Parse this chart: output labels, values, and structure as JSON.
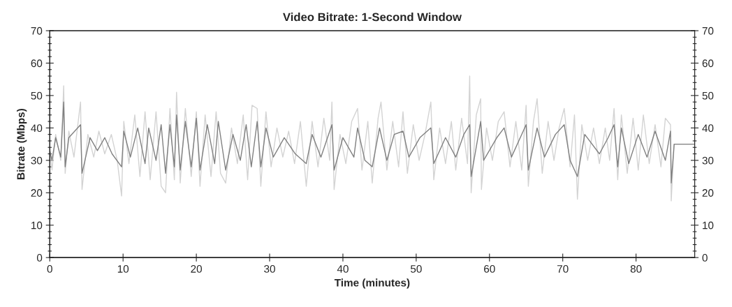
{
  "chart_data": {
    "type": "line",
    "title": "Video Bitrate: 1-Second Window",
    "xlabel": "Time (minutes)",
    "ylabel": "Bitrate (Mbps)",
    "xlim": [
      0,
      88
    ],
    "xticks": [
      0,
      10,
      20,
      30,
      40,
      50,
      60,
      70,
      80
    ],
    "ylim": [
      0,
      70
    ],
    "yticks": [
      0,
      {
        "value": 2,
        "label": null
      },
      {
        "value": 4,
        "label": null
      },
      {
        "value": 6,
        "label": null
      },
      {
        "value": 8,
        "label": null
      },
      10,
      {
        "value": 12,
        "label": null
      },
      {
        "value": 14,
        "label": null
      },
      {
        "value": 16,
        "label": null
      },
      {
        "value": 18,
        "label": null
      },
      20,
      {
        "value": 22,
        "label": null
      },
      {
        "value": 24,
        "label": null
      },
      {
        "value": 26,
        "label": null
      },
      {
        "value": 28,
        "label": null
      },
      30,
      {
        "value": 32,
        "label": null
      },
      {
        "value": 34,
        "label": null
      },
      {
        "value": 36,
        "label": null
      },
      {
        "value": 38,
        "label": null
      },
      40,
      {
        "value": 42,
        "label": null
      },
      {
        "value": 44,
        "label": null
      },
      {
        "value": 46,
        "label": null
      },
      {
        "value": 48,
        "label": null
      },
      50,
      {
        "value": 52,
        "label": null
      },
      {
        "value": 54,
        "label": null
      },
      {
        "value": 56,
        "label": null
      },
      {
        "value": 58,
        "label": null
      },
      60,
      {
        "value": 62,
        "label": null
      },
      {
        "value": 64,
        "label": null
      },
      {
        "value": 66,
        "label": null
      },
      {
        "value": 68,
        "label": null
      },
      70
    ],
    "y2lim": [
      0,
      70
    ],
    "y2ticks": [
      0,
      {
        "value": 2,
        "label": null
      },
      {
        "value": 4,
        "label": null
      },
      {
        "value": 6,
        "label": null
      },
      {
        "value": 8,
        "label": null
      },
      10,
      {
        "value": 12,
        "label": null
      },
      {
        "value": 14,
        "label": null
      },
      {
        "value": 16,
        "label": null
      },
      {
        "value": 18,
        "label": null
      },
      20,
      {
        "value": 22,
        "label": null
      },
      {
        "value": 24,
        "label": null
      },
      {
        "value": 26,
        "label": null
      },
      {
        "value": 28,
        "label": null
      },
      30,
      {
        "value": 32,
        "label": null
      },
      {
        "value": 34,
        "label": null
      },
      {
        "value": 36,
        "label": null
      },
      {
        "value": 38,
        "label": null
      },
      40,
      {
        "value": 42,
        "label": null
      },
      {
        "value": 44,
        "label": null
      },
      {
        "value": 46,
        "label": null
      },
      {
        "value": 48,
        "label": null
      },
      50,
      {
        "value": 52,
        "label": null
      },
      {
        "value": 54,
        "label": null
      },
      {
        "value": 56,
        "label": null
      },
      {
        "value": 58,
        "label": null
      },
      60,
      {
        "value": 62,
        "label": null
      },
      {
        "value": 64,
        "label": null
      },
      {
        "value": 66,
        "label": null
      },
      {
        "value": 68,
        "label": null
      },
      70
    ],
    "grid": false,
    "legend": false,
    "line_style": "solid",
    "marker": "none",
    "series": [
      {
        "color": "#d3d3d3",
        "x": [
          0,
          0.3,
          0.8,
          1.5,
          1.9,
          2.1,
          2.6,
          3.3,
          4.2,
          4.4,
          5.2,
          6,
          6.7,
          7.5,
          8.4,
          9.2,
          9.8,
          10.1,
          10.8,
          11.6,
          12.3,
          13,
          13.7,
          14.5,
          15.2,
          15.8,
          16.4,
          17,
          17.3,
          17.8,
          18.5,
          19.3,
          20,
          20.5,
          21.2,
          22,
          22.7,
          23.3,
          24,
          24.8,
          25.6,
          26.4,
          27,
          27.6,
          28.3,
          28.8,
          29.5,
          30.2,
          31,
          31.8,
          32.6,
          33.4,
          34.2,
          35,
          35.8,
          36.6,
          37.4,
          38.2,
          38.5,
          38.8,
          39.6,
          40.4,
          41.2,
          42,
          42.6,
          43.4,
          44,
          44.8,
          45.2,
          46,
          46.8,
          47.6,
          48.2,
          48.8,
          49.6,
          50.4,
          51.2,
          52,
          52.4,
          53.2,
          54,
          54.8,
          55.4,
          56.2,
          57,
          57.3,
          57.5,
          58.2,
          58.8,
          58.9,
          59.6,
          60.4,
          61.2,
          62,
          62.8,
          63.6,
          64.4,
          65,
          65.3,
          66,
          66.5,
          67.2,
          68,
          68.8,
          69.5,
          70.2,
          71,
          71.6,
          72,
          72.6,
          73.4,
          74.2,
          75,
          75.8,
          76.4,
          77,
          77.5,
          78,
          78.8,
          79.6,
          80.3,
          81,
          81.8,
          82.6,
          83.4,
          84,
          84.7,
          84.8,
          85.2,
          86.5,
          88
        ],
        "values": [
          34,
          27,
          38,
          30,
          53,
          26,
          39,
          31,
          48,
          21,
          38,
          31,
          39,
          32,
          38,
          30,
          19,
          42,
          29,
          44,
          25,
          45,
          24,
          45,
          22,
          20,
          46,
          24,
          51,
          23,
          46,
          25,
          45,
          22,
          44,
          25,
          45,
          26,
          23,
          40,
          29,
          44,
          24,
          47,
          46,
          22,
          45,
          28,
          40,
          31,
          39,
          29,
          42,
          22,
          42,
          28,
          43,
          30,
          48,
          21,
          38,
          29,
          42,
          46,
          27,
          42,
          23,
          43,
          48,
          27,
          42,
          28,
          45,
          26,
          41,
          30,
          38,
          48,
          24,
          40,
          29,
          42,
          27,
          43,
          29,
          56,
          20,
          44,
          49,
          21,
          40,
          30,
          42,
          45,
          28,
          42,
          27,
          47,
          22,
          42,
          49,
          26,
          42,
          30,
          40,
          46,
          28,
          44,
          18,
          41,
          30,
          40,
          29,
          40,
          30,
          46,
          24,
          44,
          26,
          43,
          27,
          44,
          29,
          41,
          28,
          43,
          41,
          17.5,
          35,
          35,
          35
        ]
      },
      {
        "color": "#808080",
        "x": [
          0,
          0.3,
          0.8,
          1.5,
          1.9,
          2.1,
          2.6,
          4.2,
          4.4,
          5.5,
          6.5,
          7.5,
          8.5,
          9.8,
          10.1,
          11,
          12,
          13,
          13.5,
          14.5,
          15.2,
          15.8,
          16.4,
          17,
          17.3,
          17.8,
          18.5,
          19.3,
          20,
          20.5,
          21.5,
          22.5,
          23,
          24,
          25,
          26,
          26.8,
          27.5,
          28.3,
          28.8,
          29.5,
          30.5,
          32,
          33.5,
          35,
          35.8,
          37,
          38.5,
          38.8,
          40,
          41.5,
          42,
          43,
          44,
          45,
          46,
          47,
          48.2,
          49,
          50.5,
          52,
          52.4,
          54,
          55.4,
          56.5,
          57.3,
          57.5,
          58.8,
          59.2,
          61,
          62,
          63,
          65,
          65.3,
          66.5,
          67.5,
          69,
          70.2,
          71,
          72,
          73,
          75,
          76.2,
          77,
          77.5,
          78,
          79,
          80.3,
          81.5,
          82.6,
          84,
          84.7,
          84.8,
          85.2,
          88
        ],
        "values": [
          33,
          30,
          37,
          31,
          48,
          28,
          37,
          41,
          26,
          37,
          33,
          37,
          32,
          28,
          39,
          31,
          40,
          29,
          40,
          30,
          41,
          26,
          41,
          28,
          44,
          27,
          42,
          28,
          43,
          27,
          41,
          29,
          42,
          27,
          38,
          30,
          41,
          28,
          42,
          28,
          40,
          31,
          37,
          32,
          29,
          38,
          31,
          41,
          27,
          37,
          31,
          40,
          30,
          28,
          40,
          30,
          38,
          39,
          31,
          37,
          40,
          29,
          37,
          31,
          38,
          41,
          25,
          42,
          30,
          37,
          40,
          31,
          41,
          27,
          40,
          31,
          38,
          41,
          30,
          25,
          38,
          32,
          37,
          41,
          28,
          40,
          29,
          38,
          31,
          39,
          30,
          39,
          23,
          35,
          35
        ]
      }
    ]
  }
}
